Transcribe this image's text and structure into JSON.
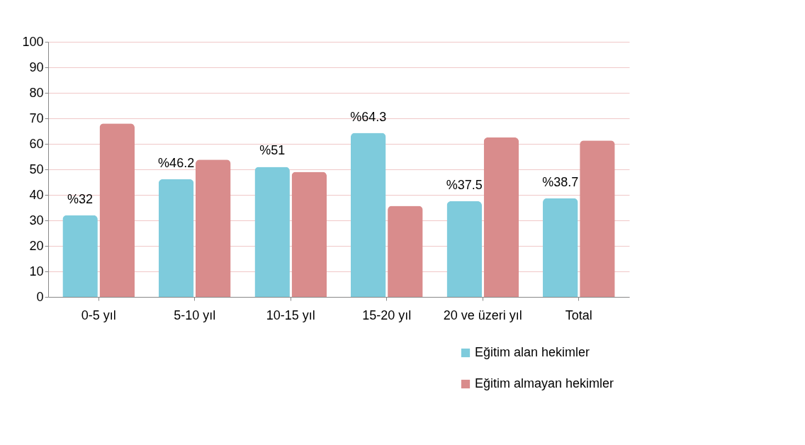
{
  "chart_data": {
    "type": "bar",
    "categories": [
      "0-5 yıl",
      "5-10 yıl",
      "10-15 yıl",
      "15-20 yıl",
      "20 ve üzeri yıl",
      "Total"
    ],
    "series": [
      {
        "name": "Eğitim alan hekimler",
        "color": "#7ecbdc",
        "values": [
          32,
          46.2,
          51,
          64.3,
          37.5,
          38.7
        ],
        "value_labels": [
          "%32",
          "%46.2",
          "%51",
          "%64.3",
          "%37.5",
          "%38.7"
        ]
      },
      {
        "name": "Eğitim almayan hekimler",
        "color": "#d98c8c",
        "values": [
          68,
          53.8,
          49,
          35.7,
          62.5,
          61.3
        ]
      }
    ],
    "ylim": [
      0,
      100
    ],
    "yticks": [
      0,
      10,
      20,
      30,
      40,
      50,
      60,
      70,
      80,
      90,
      100
    ],
    "grid": "y",
    "legend": "bottom right"
  }
}
